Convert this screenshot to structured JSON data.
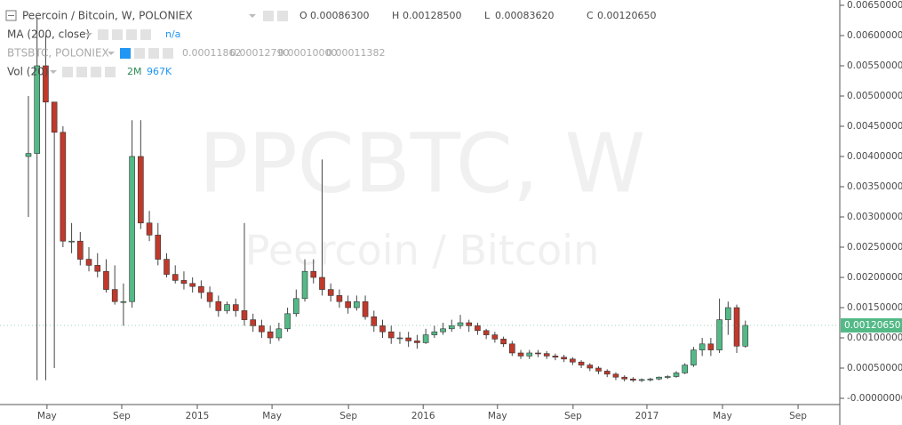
{
  "chart_data": {
    "type": "candlestick",
    "symbol_title": "Peercoin / Bitcoin, W, POLONIEX",
    "ohlc_legend": [
      {
        "label": "O",
        "value": "0.00086300"
      },
      {
        "label": "H",
        "value": "0.00128500"
      },
      {
        "label": "L",
        "value": "0.00083620"
      },
      {
        "label": "C",
        "value": "0.00120650"
      }
    ],
    "indicators": [
      {
        "name": "MA (200, close)",
        "values": [
          "n/a"
        ]
      },
      {
        "name": "BTSBTC, POLONIEX",
        "values": [
          "0.00011862",
          "0.00012790",
          "0.00010000",
          "0.00011382"
        ]
      },
      {
        "name": "Vol (20)",
        "values": [
          "2M",
          "967K"
        ]
      }
    ],
    "watermark": "PPCBTC, W",
    "watermark_subtitle": "Peercoin / Bitcoin",
    "up_color": "#53b987",
    "down_color": "#c0392b",
    "x": [
      0,
      2,
      4,
      6,
      8,
      10,
      12,
      14,
      16,
      18,
      20,
      22,
      24,
      26,
      28,
      30,
      32,
      34,
      36,
      38,
      40,
      42,
      44,
      46,
      48,
      50,
      52,
      54,
      56,
      58,
      60,
      62,
      64,
      66,
      68,
      70,
      72,
      74,
      76,
      78,
      80,
      82,
      84,
      86,
      88,
      90,
      92,
      94,
      96,
      98,
      100,
      102,
      104,
      106,
      108,
      110,
      112,
      114,
      116,
      118,
      120,
      122,
      124,
      126,
      128,
      130,
      132,
      134,
      136,
      138,
      140,
      142,
      144,
      146,
      148,
      150,
      152,
      154,
      156,
      158,
      160,
      162,
      164,
      166
    ],
    "open": [
      0.004,
      0.00405,
      0.0055,
      0.0049,
      0.0044,
      0.0026,
      0.0026,
      0.0023,
      0.0022,
      0.0021,
      0.0018,
      0.0016,
      0.0016,
      0.004,
      0.0029,
      0.0027,
      0.0023,
      0.00205,
      0.00195,
      0.0019,
      0.00185,
      0.00175,
      0.0016,
      0.00145,
      0.00155,
      0.00145,
      0.0013,
      0.0012,
      0.0011,
      0.001,
      0.00115,
      0.0014,
      0.00165,
      0.0021,
      0.002,
      0.0018,
      0.0017,
      0.0016,
      0.0015,
      0.0016,
      0.00135,
      0.0012,
      0.0011,
      0.001,
      0.001,
      0.00095,
      0.00092,
      0.00105,
      0.0011,
      0.00115,
      0.0012,
      0.00125,
      0.0012,
      0.00112,
      0.00105,
      0.00098,
      0.0009,
      0.00075,
      0.0007,
      0.00075,
      0.00074,
      0.0007,
      0.00068,
      0.00065,
      0.0006,
      0.00055,
      0.0005,
      0.00045,
      0.0004,
      0.00035,
      0.00032,
      0.0003,
      0.00031,
      0.00032,
      0.00035,
      0.00036,
      0.00042,
      0.00055,
      0.0008,
      0.0009,
      0.0008,
      0.0013,
      0.0015,
      0.000863
    ],
    "high": [
      0.005,
      0.0063,
      0.006,
      0.0049,
      0.0045,
      0.0029,
      0.00275,
      0.0025,
      0.0024,
      0.0023,
      0.0022,
      0.0019,
      0.0046,
      0.0046,
      0.0031,
      0.0029,
      0.0024,
      0.0022,
      0.0021,
      0.002,
      0.00195,
      0.00185,
      0.0017,
      0.0016,
      0.00165,
      0.0029,
      0.0014,
      0.0013,
      0.0012,
      0.00125,
      0.0015,
      0.0018,
      0.0023,
      0.0023,
      0.00395,
      0.0019,
      0.0018,
      0.0017,
      0.0017,
      0.0017,
      0.00145,
      0.0013,
      0.0012,
      0.0011,
      0.0011,
      0.00105,
      0.00115,
      0.0012,
      0.00125,
      0.0013,
      0.00138,
      0.0013,
      0.00125,
      0.00115,
      0.0011,
      0.00102,
      0.00095,
      0.0008,
      0.0008,
      0.0008,
      0.00078,
      0.00074,
      0.00072,
      0.00068,
      0.00063,
      0.00058,
      0.00053,
      0.00048,
      0.00043,
      0.00038,
      0.00035,
      0.00033,
      0.00034,
      0.00036,
      0.00038,
      0.00045,
      0.00058,
      0.00085,
      0.001,
      0.001,
      0.00165,
      0.0016,
      0.00155,
      0.001285
    ],
    "low": [
      0.003,
      0.0003,
      0.0003,
      0.0005,
      0.0025,
      0.0024,
      0.0022,
      0.0021,
      0.002,
      0.00175,
      0.00155,
      0.0012,
      0.0015,
      0.0028,
      0.0026,
      0.0022,
      0.002,
      0.0019,
      0.0018,
      0.00175,
      0.00165,
      0.0015,
      0.00135,
      0.0014,
      0.00135,
      0.0012,
      0.0011,
      0.001,
      0.0009,
      0.00095,
      0.0011,
      0.00135,
      0.0016,
      0.0019,
      0.0017,
      0.0016,
      0.0015,
      0.0014,
      0.00145,
      0.0013,
      0.0011,
      0.001,
      0.0009,
      0.0009,
      0.00085,
      0.00082,
      0.0009,
      0.001,
      0.00105,
      0.0011,
      0.00115,
      0.0011,
      0.00105,
      0.00098,
      0.00092,
      0.00085,
      0.0007,
      0.00065,
      0.00065,
      0.00068,
      0.00065,
      0.00063,
      0.0006,
      0.00055,
      0.0005,
      0.00045,
      0.0004,
      0.00035,
      0.0003,
      0.00028,
      0.00027,
      0.00027,
      0.00028,
      0.0003,
      0.00032,
      0.00034,
      0.0004,
      0.00052,
      0.0007,
      0.0007,
      0.00075,
      0.00105,
      0.00075,
      0.0008362
    ],
    "close": [
      0.00405,
      0.0055,
      0.0049,
      0.0044,
      0.0026,
      0.0026,
      0.0023,
      0.0022,
      0.0021,
      0.0018,
      0.0016,
      0.0016,
      0.004,
      0.0029,
      0.0027,
      0.0023,
      0.00205,
      0.00195,
      0.0019,
      0.00185,
      0.00175,
      0.0016,
      0.00145,
      0.00155,
      0.00145,
      0.0013,
      0.0012,
      0.0011,
      0.001,
      0.00115,
      0.0014,
      0.00165,
      0.0021,
      0.002,
      0.0018,
      0.0017,
      0.0016,
      0.0015,
      0.0016,
      0.00135,
      0.0012,
      0.0011,
      0.001,
      0.001,
      0.00095,
      0.00092,
      0.00105,
      0.0011,
      0.00115,
      0.0012,
      0.00125,
      0.0012,
      0.00112,
      0.00105,
      0.00098,
      0.0009,
      0.00075,
      0.0007,
      0.00075,
      0.00074,
      0.0007,
      0.00068,
      0.00065,
      0.0006,
      0.00055,
      0.0005,
      0.00045,
      0.0004,
      0.00035,
      0.00032,
      0.0003,
      0.00031,
      0.00032,
      0.00035,
      0.00036,
      0.00042,
      0.00055,
      0.0008,
      0.0009,
      0.0008,
      0.0013,
      0.0015,
      0.000863,
      0.0012065
    ],
    "last_price": {
      "value": 0.0012065,
      "label": "0.00120650"
    },
    "xlim": [
      -6.58,
      187.86
    ],
    "xticks": [
      {
        "value": 4.3,
        "label": "May"
      },
      {
        "value": 21.6,
        "label": "Sep"
      },
      {
        "value": 39.1,
        "label": "2015"
      },
      {
        "value": 56.4,
        "label": "May"
      },
      {
        "value": 74.1,
        "label": "Sep"
      },
      {
        "value": 91.4,
        "label": "2016"
      },
      {
        "value": 108.6,
        "label": "May"
      },
      {
        "value": 126.1,
        "label": "Sep"
      },
      {
        "value": 143.2,
        "label": "2017"
      },
      {
        "value": 160.7,
        "label": "May"
      },
      {
        "value": 178.2,
        "label": "Sep"
      }
    ],
    "ylim": [
      -0.000103,
      0.006588
    ],
    "yticks": [
      {
        "value": 0,
        "label": "-0.00000000"
      },
      {
        "value": 0.0005,
        "label": "0.00050000"
      },
      {
        "value": 0.001,
        "label": "0.00100000"
      },
      {
        "value": 0.0015,
        "label": "0.00150000"
      },
      {
        "value": 0.002,
        "label": "0.00200000"
      },
      {
        "value": 0.0025,
        "label": "0.00250000"
      },
      {
        "value": 0.003,
        "label": "0.00300000"
      },
      {
        "value": 0.0035,
        "label": "0.00350000"
      },
      {
        "value": 0.004,
        "label": "0.00400000"
      },
      {
        "value": 0.0045,
        "label": "0.00450000"
      },
      {
        "value": 0.005,
        "label": "0.00500000"
      },
      {
        "value": 0.0055,
        "label": "0.00550000"
      },
      {
        "value": 0.006,
        "label": "0.00600000"
      },
      {
        "value": 0.0065,
        "label": "0.00650000"
      }
    ]
  }
}
